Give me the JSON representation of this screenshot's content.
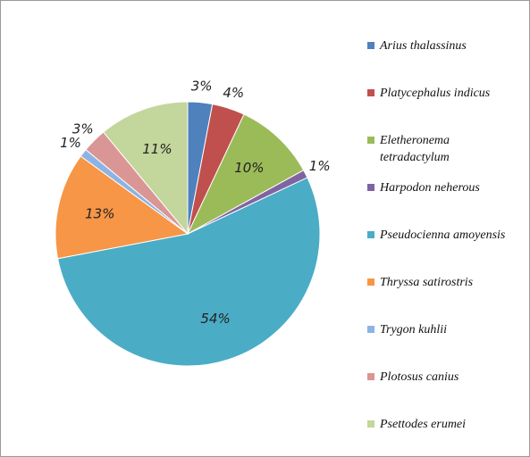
{
  "chart_data": {
    "type": "pie",
    "categories": [
      "Arius thalassinus",
      "Platycephalus indicus",
      "Eletheronema tetradactylum",
      "Harpodon neherous",
      "Pseudocienna amoyensis",
      "Thryssa satirostris",
      "Trygon kuhlii",
      "Plotosus canius",
      "Psettodes erumei"
    ],
    "values": [
      3,
      4,
      10,
      1,
      54,
      13,
      1,
      3,
      11
    ],
    "value_labels": [
      "3%",
      "4%",
      "10%",
      "1%",
      "54%",
      "13%",
      "1%",
      "3%",
      "11%"
    ],
    "colors": [
      "#4f81bd",
      "#c0504d",
      "#9bbb59",
      "#8064a2",
      "#4bacc6",
      "#f79646",
      "#8db3e2",
      "#d99694",
      "#c3d69b"
    ],
    "legend": "right"
  }
}
